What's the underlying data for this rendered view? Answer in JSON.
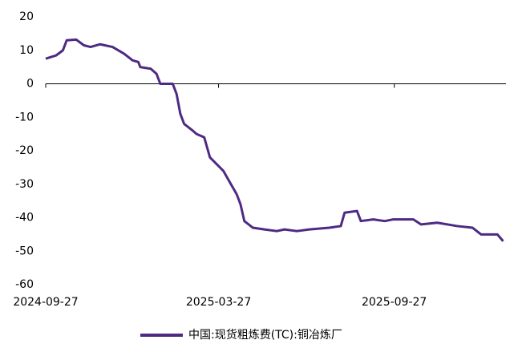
{
  "chart_data": {
    "type": "line",
    "x": [
      "2024-09-27",
      "2024-10-08",
      "2024-10-15",
      "2024-10-19",
      "2024-10-29",
      "2024-11-06",
      "2024-11-13",
      "2024-11-23",
      "2024-12-06",
      "2024-12-18",
      "2024-12-27",
      "2025-01-02",
      "2025-01-04",
      "2025-01-15",
      "2025-01-21",
      "2025-01-25",
      "2025-02-07",
      "2025-02-11",
      "2025-02-15",
      "2025-02-19",
      "2025-02-28",
      "2025-03-04",
      "2025-03-12",
      "2025-03-18",
      "2025-03-25",
      "2025-04-01",
      "2025-04-07",
      "2025-04-15",
      "2025-04-19",
      "2025-04-23",
      "2025-05-02",
      "2025-05-14",
      "2025-05-27",
      "2025-06-04",
      "2025-06-17",
      "2025-06-30",
      "2025-07-21",
      "2025-08-02",
      "2025-08-06",
      "2025-08-19",
      "2025-08-23",
      "2025-09-05",
      "2025-09-17",
      "2025-09-26",
      "2025-10-17",
      "2025-10-25",
      "2025-11-11",
      "2025-12-02",
      "2025-12-18",
      "2025-12-27",
      "2026-01-13",
      "2026-01-19"
    ],
    "series": [
      {
        "name": "中国:现货粗炼费(TC):铜冶炼厂",
        "color": "#4e2a84",
        "values": [
          7.5,
          8.5,
          10,
          13,
          13.2,
          11.5,
          11,
          11.8,
          11,
          9,
          7,
          6.5,
          5,
          4.5,
          3,
          0,
          0,
          -3,
          -9,
          -12,
          -14,
          -15,
          -16,
          -22,
          -24,
          -26,
          -29,
          -33,
          -36,
          -41,
          -43,
          -43.5,
          -44,
          -43.5,
          -44,
          -43.5,
          -43,
          -42.5,
          -38.5,
          -38,
          -41,
          -40.5,
          -41,
          -40.5,
          -40.5,
          -42,
          -41.5,
          -42.5,
          -43,
          -45,
          -45,
          -47
        ]
      }
    ],
    "xlim": [
      "2024-09-27",
      "2026-01-22"
    ],
    "xticks": [
      "2024-09-27",
      "2025-03-27",
      "2025-09-27"
    ],
    "ylim": [
      -60,
      20
    ],
    "yticks": [
      -60,
      -50,
      -40,
      -30,
      -20,
      -10,
      0,
      10,
      20
    ],
    "grid": false,
    "legend": "bottom"
  }
}
